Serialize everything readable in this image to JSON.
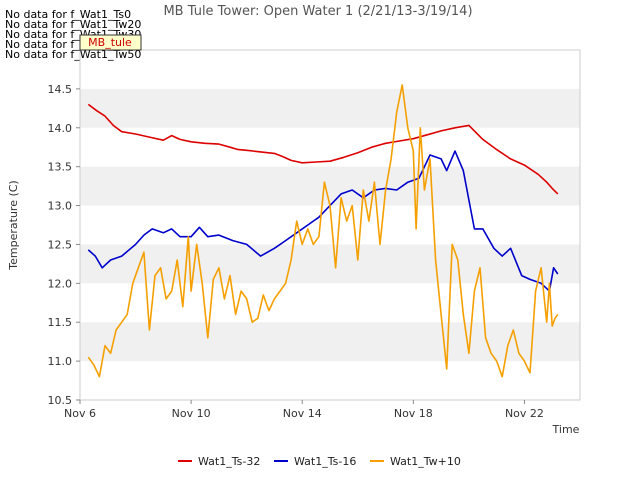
{
  "no_data_messages": [
    "No data for f_Wat1_Ts0",
    "No data for f_Wat1_Tw20",
    "No data for f_Wat1_Tw30",
    "No data for f_Wat1_Tw40",
    "No data for f_Wat1_Tw50"
  ],
  "badge_text": "MB_tule",
  "chart_data": {
    "type": "line",
    "title": "MB Tule Tower: Open Water 1 (2/21/13-3/19/14)",
    "xlabel": "Time",
    "ylabel": "Temperature (C)",
    "x_unit": "days since Nov 6",
    "xlim": [
      0,
      18
    ],
    "ylim": [
      10.5,
      15.0
    ],
    "x_ticks": [
      0,
      4,
      8,
      12,
      16
    ],
    "x_tick_labels": [
      "Nov 6",
      "Nov 10",
      "Nov 14",
      "Nov 18",
      "Nov 22"
    ],
    "y_ticks": [
      10.5,
      11.0,
      11.5,
      12.0,
      12.5,
      13.0,
      13.5,
      14.0,
      14.5
    ],
    "y_tick_labels": [
      "10.5",
      "11.0",
      "11.5",
      "12.0",
      "12.5",
      "13.0",
      "13.5",
      "14.0",
      "14.5"
    ],
    "grid_bands": true,
    "legend_position": "bottom-center",
    "series": [
      {
        "name": "Wat1_Ts-32",
        "color": "#dd0000",
        "x": [
          0.3,
          0.6,
          0.9,
          1.2,
          1.5,
          2.0,
          2.5,
          3.0,
          3.3,
          3.6,
          4.0,
          4.5,
          5.0,
          5.4,
          5.7,
          6.0,
          6.5,
          7.0,
          7.3,
          7.6,
          8.0,
          8.5,
          9.0,
          9.5,
          10.0,
          10.5,
          11.0,
          11.5,
          12.0,
          12.5,
          13.0,
          13.5,
          14.0,
          14.5,
          15.0,
          15.5,
          16.0,
          16.5,
          16.8,
          17.0,
          17.2
        ],
        "values": [
          14.3,
          14.22,
          14.15,
          14.03,
          13.95,
          13.92,
          13.88,
          13.84,
          13.9,
          13.85,
          13.82,
          13.8,
          13.79,
          13.75,
          13.72,
          13.71,
          13.69,
          13.67,
          13.63,
          13.58,
          13.55,
          13.56,
          13.57,
          13.62,
          13.68,
          13.75,
          13.8,
          13.83,
          13.86,
          13.91,
          13.96,
          14.0,
          14.03,
          13.85,
          13.72,
          13.6,
          13.52,
          13.4,
          13.3,
          13.22,
          13.15
        ]
      },
      {
        "name": "Wat1_Ts-16",
        "color": "#0000cc",
        "x": [
          0.3,
          0.55,
          0.8,
          1.1,
          1.5,
          2.0,
          2.3,
          2.6,
          3.0,
          3.3,
          3.6,
          4.0,
          4.3,
          4.6,
          5.0,
          5.5,
          6.0,
          6.5,
          7.0,
          7.4,
          7.8,
          8.2,
          8.6,
          9.0,
          9.4,
          9.8,
          10.2,
          10.6,
          11.0,
          11.4,
          11.8,
          12.2,
          12.6,
          13.0,
          13.2,
          13.5,
          13.8,
          14.2,
          14.5,
          14.9,
          15.2,
          15.5,
          15.9,
          16.2,
          16.6,
          16.9,
          17.05,
          17.2
        ],
        "values": [
          12.43,
          12.35,
          12.2,
          12.3,
          12.35,
          12.5,
          12.62,
          12.7,
          12.65,
          12.7,
          12.6,
          12.6,
          12.72,
          12.6,
          12.62,
          12.55,
          12.5,
          12.35,
          12.45,
          12.55,
          12.65,
          12.75,
          12.85,
          13.0,
          13.15,
          13.2,
          13.1,
          13.2,
          13.22,
          13.2,
          13.3,
          13.35,
          13.65,
          13.6,
          13.45,
          13.7,
          13.45,
          12.7,
          12.7,
          12.45,
          12.35,
          12.45,
          12.1,
          12.05,
          12.0,
          11.9,
          12.2,
          12.12
        ]
      },
      {
        "name": "Wat1_Tw+10",
        "color": "#f5a000",
        "x": [
          0.3,
          0.5,
          0.7,
          0.9,
          1.1,
          1.3,
          1.5,
          1.7,
          1.9,
          2.1,
          2.3,
          2.5,
          2.7,
          2.9,
          3.1,
          3.3,
          3.5,
          3.7,
          3.9,
          4.0,
          4.2,
          4.4,
          4.6,
          4.8,
          5.0,
          5.2,
          5.4,
          5.6,
          5.8,
          6.0,
          6.2,
          6.4,
          6.6,
          6.8,
          7.0,
          7.2,
          7.4,
          7.6,
          7.8,
          8.0,
          8.2,
          8.4,
          8.6,
          8.8,
          9.0,
          9.2,
          9.4,
          9.6,
          9.8,
          10.0,
          10.2,
          10.4,
          10.6,
          10.8,
          11.0,
          11.2,
          11.4,
          11.6,
          11.8,
          12.0,
          12.1,
          12.25,
          12.4,
          12.6,
          12.8,
          13.0,
          13.2,
          13.4,
          13.6,
          13.8,
          14.0,
          14.2,
          14.4,
          14.6,
          14.8,
          15.0,
          15.2,
          15.4,
          15.6,
          15.8,
          16.0,
          16.2,
          16.4,
          16.6,
          16.8,
          16.9,
          17.0,
          17.1,
          17.2
        ],
        "values": [
          11.05,
          10.95,
          10.8,
          11.2,
          11.1,
          11.4,
          11.5,
          11.6,
          12.0,
          12.2,
          12.4,
          11.4,
          12.1,
          12.2,
          11.8,
          11.9,
          12.3,
          11.7,
          12.6,
          11.9,
          12.5,
          12.0,
          11.3,
          12.05,
          12.2,
          11.8,
          12.1,
          11.6,
          11.9,
          11.8,
          11.5,
          11.55,
          11.85,
          11.65,
          11.8,
          11.9,
          12.0,
          12.3,
          12.8,
          12.5,
          12.7,
          12.5,
          12.6,
          13.3,
          13.0,
          12.2,
          13.1,
          12.8,
          13.0,
          12.3,
          13.2,
          12.8,
          13.3,
          12.5,
          13.2,
          13.6,
          14.2,
          14.55,
          14.0,
          13.7,
          12.7,
          14.0,
          13.2,
          13.6,
          12.3,
          11.6,
          10.9,
          12.5,
          12.3,
          11.6,
          11.1,
          11.9,
          12.2,
          11.3,
          11.1,
          11.0,
          10.8,
          11.2,
          11.4,
          11.1,
          11.0,
          10.85,
          11.9,
          12.2,
          11.5,
          12.0,
          11.45,
          11.55,
          11.6
        ]
      }
    ]
  }
}
